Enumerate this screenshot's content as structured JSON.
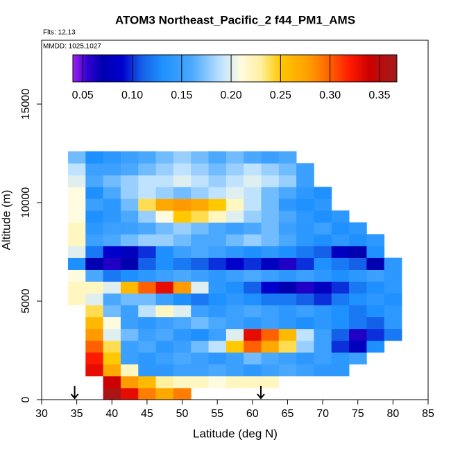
{
  "chart_data": {
    "type": "heatmap",
    "title": "ATOM3 Northeast_Pacific_2 f44_PM1_AMS",
    "annotations": [
      "Flts: 12,13",
      "MMDD: 1025,1027"
    ],
    "x_label": "Latitude (deg N)",
    "y_label": "Altitude (m)",
    "xlim": [
      30,
      85
    ],
    "ylim": [
      0,
      18240
    ],
    "xticks": [
      30,
      35,
      40,
      45,
      50,
      55,
      60,
      65,
      70,
      75,
      80,
      85
    ],
    "yticks": [
      0,
      5000,
      10000,
      15000
    ],
    "x": [
      35,
      37.5,
      40,
      42.5,
      45,
      47.5,
      50,
      52.5,
      55,
      57.5,
      60,
      62.5,
      65,
      67.5,
      70,
      72.5,
      75,
      77.5,
      80
    ],
    "y": [
      300,
      900,
      1500,
      2100,
      2700,
      3300,
      3900,
      4500,
      5100,
      5700,
      6300,
      6900,
      7500,
      8100,
      8700,
      9300,
      9900,
      10500,
      11100,
      11700,
      12300
    ],
    "z": [
      [
        null,
        null,
        0.36,
        0.33,
        0.29,
        0.27,
        0.29,
        null,
        null,
        null,
        null,
        null,
        null,
        null,
        null,
        null,
        null,
        null,
        null
      ],
      [
        null,
        null,
        0.34,
        0.28,
        0.26,
        0.23,
        0.22,
        0.22,
        0.21,
        0.22,
        0.22,
        0.22,
        null,
        null,
        null,
        null,
        null,
        null,
        null
      ],
      [
        null,
        0.33,
        0.27,
        0.22,
        0.14,
        0.14,
        0.15,
        0.15,
        0.16,
        0.15,
        0.14,
        0.15,
        0.16,
        0.15,
        0.14,
        0.14,
        null,
        null,
        null
      ],
      [
        null,
        0.32,
        0.25,
        0.15,
        0.14,
        0.15,
        0.16,
        0.15,
        0.14,
        0.15,
        0.17,
        0.16,
        0.15,
        0.14,
        0.15,
        0.14,
        0.15,
        null,
        null
      ],
      [
        null,
        0.3,
        0.24,
        0.15,
        0.16,
        0.14,
        0.15,
        0.17,
        0.19,
        0.25,
        0.3,
        0.27,
        0.24,
        0.18,
        0.15,
        0.1,
        0.08,
        0.13,
        null
      ],
      [
        null,
        0.28,
        0.2,
        0.17,
        0.15,
        0.16,
        0.14,
        0.13,
        0.15,
        0.2,
        0.33,
        0.3,
        0.26,
        0.19,
        0.15,
        0.11,
        0.06,
        0.1,
        0.12
      ],
      [
        null,
        0.26,
        0.21,
        0.15,
        0.14,
        0.15,
        0.16,
        0.17,
        0.16,
        0.15,
        0.14,
        0.15,
        0.14,
        0.13,
        0.14,
        0.13,
        0.12,
        0.11,
        0.14
      ],
      [
        null,
        0.24,
        0.17,
        0.15,
        0.19,
        0.22,
        0.2,
        0.15,
        0.14,
        0.15,
        0.16,
        0.15,
        0.14,
        0.15,
        0.14,
        0.13,
        0.12,
        0.13,
        0.14
      ],
      [
        0.22,
        0.2,
        0.16,
        0.17,
        0.17,
        0.15,
        0.13,
        0.12,
        0.13,
        0.14,
        0.13,
        0.12,
        0.12,
        0.11,
        0.1,
        0.12,
        0.13,
        0.14,
        0.13
      ],
      [
        0.22,
        0.22,
        0.2,
        0.26,
        0.3,
        0.33,
        0.28,
        0.2,
        0.14,
        0.13,
        0.11,
        0.09,
        0.07,
        0.06,
        0.08,
        0.1,
        0.12,
        0.13,
        0.14
      ],
      [
        0.21,
        0.16,
        0.12,
        0.13,
        0.14,
        0.15,
        0.16,
        0.15,
        0.14,
        0.15,
        0.16,
        0.15,
        0.14,
        0.15,
        0.14,
        0.13,
        0.14,
        0.15,
        0.14
      ],
      [
        0.13,
        0.07,
        0.06,
        0.07,
        0.11,
        0.13,
        0.12,
        0.11,
        0.1,
        0.09,
        0.1,
        0.08,
        0.06,
        0.1,
        0.13,
        0.12,
        0.11,
        0.07,
        0.14
      ],
      [
        0.2,
        0.12,
        0.09,
        0.08,
        0.1,
        0.13,
        0.15,
        0.16,
        0.15,
        0.14,
        0.13,
        0.14,
        0.13,
        0.12,
        0.11,
        0.08,
        0.07,
        0.13,
        null
      ],
      [
        0.22,
        0.15,
        0.16,
        0.17,
        0.18,
        0.18,
        0.17,
        0.16,
        0.16,
        0.17,
        0.18,
        0.17,
        0.16,
        0.14,
        0.13,
        0.14,
        0.13,
        0.14,
        null
      ],
      [
        0.22,
        0.14,
        0.15,
        0.15,
        0.16,
        0.17,
        0.18,
        0.17,
        0.16,
        0.15,
        0.16,
        0.17,
        0.15,
        0.14,
        0.15,
        0.13,
        0.14,
        null,
        null
      ],
      [
        0.21,
        0.13,
        0.14,
        0.16,
        0.18,
        0.21,
        0.25,
        0.24,
        0.22,
        0.2,
        0.18,
        0.17,
        0.16,
        0.14,
        0.13,
        0.14,
        null,
        null,
        null
      ],
      [
        0.21,
        0.15,
        0.14,
        0.17,
        0.24,
        0.27,
        0.28,
        0.27,
        0.25,
        0.22,
        0.19,
        0.17,
        0.14,
        0.13,
        0.14,
        null,
        null,
        null,
        null
      ],
      [
        0.21,
        0.13,
        0.16,
        0.18,
        0.19,
        0.18,
        0.17,
        0.18,
        0.19,
        0.2,
        0.19,
        0.17,
        0.16,
        0.14,
        0.13,
        null,
        null,
        null,
        null
      ],
      [
        0.2,
        0.16,
        0.17,
        0.18,
        0.19,
        0.19,
        0.2,
        0.19,
        0.18,
        0.19,
        0.2,
        0.19,
        0.18,
        0.15,
        null,
        null,
        null,
        null,
        null
      ],
      [
        0.19,
        0.15,
        0.15,
        0.16,
        0.17,
        0.18,
        0.19,
        0.18,
        0.17,
        0.18,
        0.19,
        0.18,
        0.17,
        0.15,
        null,
        null,
        null,
        null,
        null
      ],
      [
        0.17,
        0.13,
        0.14,
        0.15,
        0.16,
        0.17,
        0.18,
        0.17,
        0.16,
        0.17,
        0.16,
        0.15,
        0.16,
        null,
        null,
        null,
        null,
        null,
        null
      ]
    ],
    "colorscale": [
      {
        "value": 0.04,
        "color": "#a020f0"
      },
      {
        "value": 0.055,
        "color": "#3000d0"
      },
      {
        "value": 0.07,
        "color": "#0000b0"
      },
      {
        "value": 0.09,
        "color": "#0000cd"
      },
      {
        "value": 0.11,
        "color": "#1560e8"
      },
      {
        "value": 0.13,
        "color": "#1e90ff"
      },
      {
        "value": 0.16,
        "color": "#4aa8ff"
      },
      {
        "value": 0.19,
        "color": "#bfe3ff"
      },
      {
        "value": 0.21,
        "color": "#fffbe0"
      },
      {
        "value": 0.23,
        "color": "#fff0a0"
      },
      {
        "value": 0.25,
        "color": "#ffc800"
      },
      {
        "value": 0.28,
        "color": "#ff9a00"
      },
      {
        "value": 0.3,
        "color": "#ff6000"
      },
      {
        "value": 0.32,
        "color": "#ff1a00"
      },
      {
        "value": 0.34,
        "color": "#cc0000"
      },
      {
        "value": 0.3676,
        "color": "#a01c1c"
      }
    ],
    "colorbar_ticks": [
      0.05,
      {
        "value": 0.1,
        "label": "0.10"
      },
      0.15,
      {
        "value": 0.2,
        "label": "0.20"
      },
      0.25,
      {
        "value": 0.3,
        "label": "0.30"
      },
      0.35
    ],
    "markers_x": [
      34.7,
      61.2
    ]
  }
}
